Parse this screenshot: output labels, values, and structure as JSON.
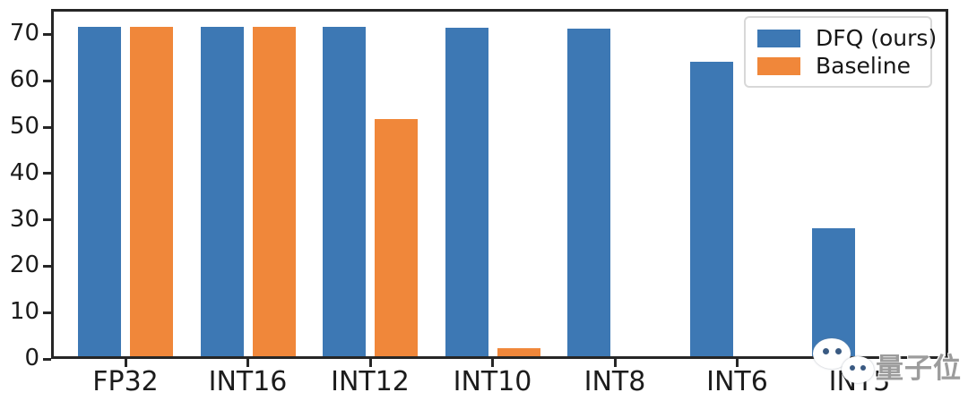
{
  "legend": {
    "items": [
      {
        "label": "DFQ (ours)",
        "color": "#3D78B4"
      },
      {
        "label": "Baseline",
        "color": "#F0873A"
      }
    ]
  },
  "watermark": {
    "text": "量子位",
    "icon": "wechat-icon"
  },
  "colors": {
    "dfq_blue": "#3D78B4",
    "baseline_orange": "#F0873A",
    "axis": "#262626",
    "background": "#ffffff"
  },
  "chart_data": {
    "type": "bar",
    "title": "",
    "xlabel": "",
    "ylabel": "",
    "categories": [
      "FP32",
      "INT16",
      "INT12",
      "INT10",
      "INT8",
      "INT6",
      "INT5"
    ],
    "series": [
      {
        "name": "DFQ (ours)",
        "color": "#3D78B4",
        "values": [
          71.7,
          71.7,
          71.6,
          71.5,
          71.3,
          64.2,
          28.2
        ]
      },
      {
        "name": "Baseline",
        "color": "#F0873A",
        "values": [
          71.7,
          71.7,
          51.7,
          2.3,
          0,
          0,
          0
        ]
      }
    ],
    "ylim": [
      0,
      75.5
    ],
    "yticks": [
      0,
      10,
      20,
      30,
      40,
      50,
      60,
      70
    ],
    "grid": false,
    "legend_position": "upper right"
  }
}
